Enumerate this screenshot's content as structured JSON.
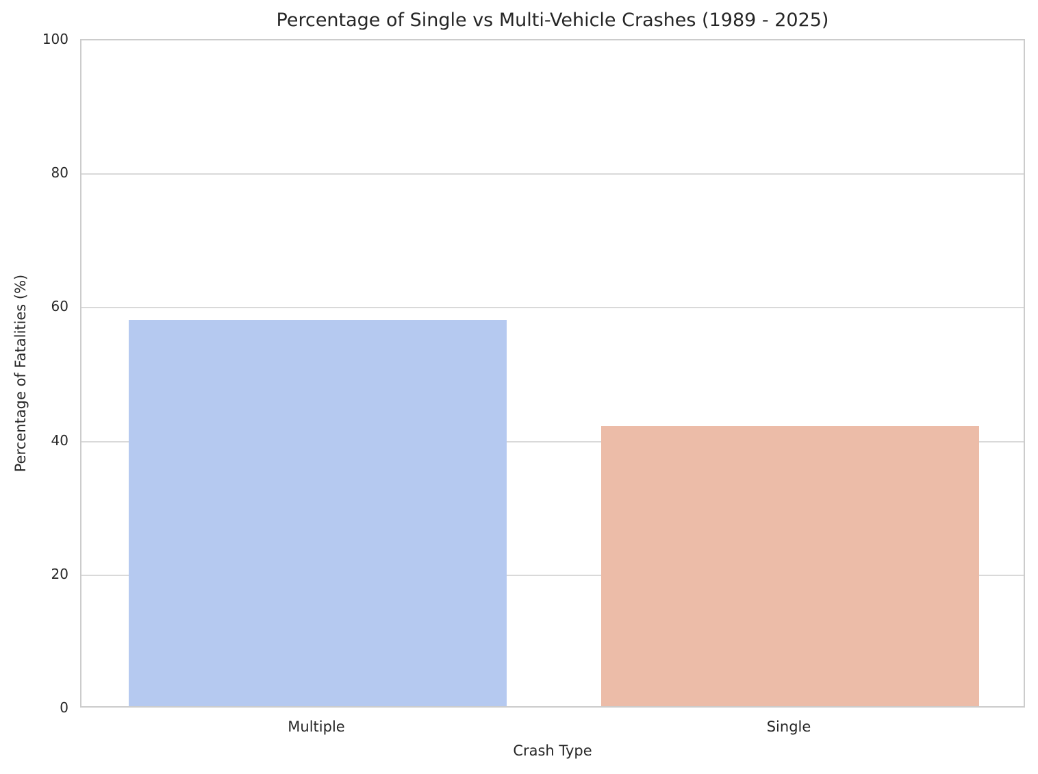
{
  "chart_data": {
    "type": "bar",
    "title": "Percentage of Single vs Multi-Vehicle Crashes (1989 - 2025)",
    "xlabel": "Crash Type",
    "ylabel": "Percentage of Fatalities (%)",
    "categories": [
      "Multiple",
      "Single"
    ],
    "values": [
      57.8,
      41.9
    ],
    "bar_colors": [
      "#b5c9f0",
      "#ecbca8"
    ],
    "ylim": [
      0,
      100
    ],
    "yticks": [
      0,
      20,
      40,
      60,
      80,
      100
    ],
    "grid": "horizontal-only",
    "legend": "none",
    "bar_width_fraction": 0.8,
    "colors": {
      "text": "#262626",
      "gridline": "#d9d9d9",
      "spine": "#cccccc",
      "background": "#ffffff"
    }
  }
}
